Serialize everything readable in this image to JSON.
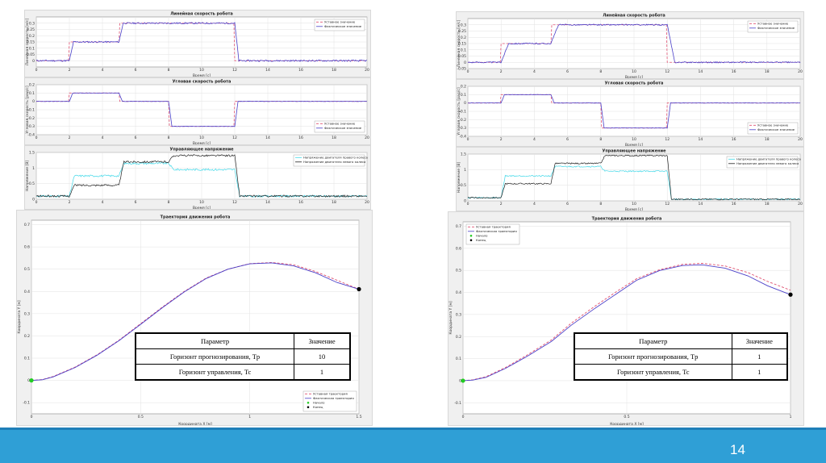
{
  "slide": {
    "page_number": "14",
    "footer_color": "#2f9fd6"
  },
  "colors": {
    "setpoint": "#e05070",
    "actual": "#4a3fc8",
    "right_motor": "#40d8e8",
    "left_motor": "#202020",
    "start": "#22cc22",
    "end": "#000000"
  },
  "table_header": [
    "Параметр",
    "Значение"
  ],
  "param_labels": [
    "Горизонт прогнозирования, Tp",
    "Горизонт управления, Tc"
  ],
  "chart_data": [
    {
      "id": "left-linear-velocity",
      "type": "line",
      "title": "Линейная скорость робота",
      "xlabel": "Время [с]",
      "ylabel": "Линейная скорость [м/с]",
      "xlim": [
        0,
        20
      ],
      "ylim": [
        -0.05,
        0.35
      ],
      "xticks": [
        0,
        2,
        4,
        6,
        8,
        10,
        12,
        14,
        16,
        18,
        20
      ],
      "yticks": [
        0,
        0.05,
        0.1,
        0.15,
        0.2,
        0.25,
        0.3
      ],
      "legend": [
        "Уставное значение",
        "Фактическое значение"
      ],
      "legend_position": "top-right",
      "grid": true,
      "setpoint": {
        "times": [
          0,
          2,
          5,
          12,
          20
        ],
        "values": [
          0,
          0.15,
          0.3,
          0,
          0
        ]
      },
      "lag": 0.25,
      "noise": 0.006
    },
    {
      "id": "left-angular-velocity",
      "type": "line",
      "title": "Угловая скорость робота",
      "xlabel": "Время [с]",
      "ylabel": "Угловая скорость [рад/с]",
      "xlim": [
        0,
        20
      ],
      "ylim": [
        -0.4,
        0.2
      ],
      "xticks": [
        0,
        2,
        4,
        6,
        8,
        10,
        12,
        14,
        16,
        18,
        20
      ],
      "yticks": [
        -0.4,
        -0.3,
        -0.2,
        -0.1,
        0,
        0.1,
        0.2
      ],
      "legend": [
        "Уставное значение",
        "Фактическое значение"
      ],
      "legend_position": "bottom-right",
      "grid": true,
      "setpoint": {
        "times": [
          0,
          2,
          5,
          8,
          12,
          20
        ],
        "values": [
          0,
          0.1,
          0,
          -0.3,
          0,
          0
        ]
      },
      "lag": 0.2,
      "noise": 0.002
    },
    {
      "id": "left-control-voltage",
      "type": "line",
      "title": "Управляющее напряжение",
      "xlabel": "Время [с]",
      "ylabel": "Напряжение [В]",
      "xlim": [
        0,
        20
      ],
      "ylim": [
        0,
        1.5
      ],
      "xticks": [
        0,
        2,
        4,
        6,
        8,
        10,
        12,
        14,
        16,
        18,
        20
      ],
      "yticks": [
        0,
        0.5,
        1,
        1.5
      ],
      "legend": [
        "Напряжение двигателя правого колеса",
        "Напряжение двигателя левого колеса"
      ],
      "legend_position": "top-right",
      "grid": true,
      "series": [
        {
          "name": "Напряжение двигателя правого колеса",
          "times": [
            0,
            2,
            5,
            8,
            12,
            20
          ],
          "values": [
            0.1,
            0.75,
            1.15,
            0.95,
            0.1,
            0.1
          ]
        },
        {
          "name": "Напряжение двигателя левого колеса",
          "times": [
            0,
            2,
            5,
            8,
            12,
            20
          ],
          "values": [
            0.1,
            0.45,
            1.2,
            1.4,
            0.1,
            0.1
          ]
        }
      ],
      "lag": 0.3,
      "noise": 0.03
    },
    {
      "id": "left-trajectory",
      "type": "line",
      "title": "Траектория движения робота",
      "xlabel": "Координата X [м]",
      "ylabel": "Координата Y [м]",
      "xlim": [
        0,
        1.5
      ],
      "ylim": [
        -0.15,
        0.72
      ],
      "xticks": [
        0,
        0.5,
        1,
        1.5
      ],
      "yticks": [
        -0.1,
        0,
        0.1,
        0.2,
        0.3,
        0.4,
        0.5,
        0.6,
        0.7
      ],
      "legend": [
        "Уставная траектория",
        "Фактическая траектория",
        "Начало",
        "Конец"
      ],
      "legend_position": "bottom-right",
      "grid": true,
      "x": [
        0,
        0.05,
        0.1,
        0.2,
        0.3,
        0.4,
        0.5,
        0.6,
        0.7,
        0.8,
        0.9,
        1.0,
        1.1,
        1.2,
        1.3,
        1.4,
        1.5
      ],
      "y_setpoint": [
        0,
        0.004,
        0.018,
        0.06,
        0.115,
        0.18,
        0.255,
        0.33,
        0.4,
        0.46,
        0.5,
        0.525,
        0.53,
        0.52,
        0.49,
        0.45,
        0.41
      ],
      "y_actual": [
        0,
        0.003,
        0.016,
        0.058,
        0.113,
        0.178,
        0.252,
        0.327,
        0.398,
        0.458,
        0.5,
        0.524,
        0.528,
        0.515,
        0.484,
        0.44,
        0.41
      ],
      "start": [
        0,
        0
      ],
      "end": [
        1.5,
        0.41
      ],
      "table": {
        "tp": "10",
        "tc": "1"
      }
    },
    {
      "id": "right-linear-velocity",
      "type": "line",
      "title": "Линейная скорость робота",
      "xlabel": "Время [с]",
      "ylabel": "Линейная скорость [м/с]",
      "xlim": [
        0,
        20
      ],
      "ylim": [
        -0.05,
        0.35
      ],
      "xticks": [
        0,
        2,
        4,
        6,
        8,
        10,
        12,
        14,
        16,
        18,
        20
      ],
      "yticks": [
        -0.05,
        0,
        0.05,
        0.1,
        0.15,
        0.2,
        0.25,
        0.3
      ],
      "legend": [
        "Уставное значение",
        "Фактическое значение"
      ],
      "legend_position": "top-right",
      "grid": true,
      "setpoint": {
        "times": [
          0,
          2,
          5,
          12,
          20
        ],
        "values": [
          0,
          0.15,
          0.3,
          0,
          0
        ]
      },
      "lag": 0.45,
      "noise": 0.005
    },
    {
      "id": "right-angular-velocity",
      "type": "line",
      "title": "Угловая скорость робота",
      "xlabel": "Время [с]",
      "ylabel": "Угловая скорость [рад/с]",
      "xlim": [
        0,
        20
      ],
      "ylim": [
        -0.4,
        0.2
      ],
      "xticks": [
        0,
        2,
        4,
        6,
        8,
        10,
        12,
        14,
        16,
        18,
        20
      ],
      "yticks": [
        -0.4,
        -0.3,
        -0.2,
        -0.1,
        0,
        0.1,
        0.2
      ],
      "legend": [
        "Уставное значение",
        "Фактическое значение"
      ],
      "legend_position": "bottom-right",
      "grid": true,
      "setpoint": {
        "times": [
          0,
          2,
          5,
          8,
          12,
          20
        ],
        "values": [
          0,
          0.1,
          0,
          -0.3,
          0,
          0
        ]
      },
      "lag": 0.2,
      "noise": 0.002
    },
    {
      "id": "right-control-voltage",
      "type": "line",
      "title": "Управляющее напряжение",
      "xlabel": "Время [с]",
      "ylabel": "Напряжение [В]",
      "xlim": [
        0,
        20
      ],
      "ylim": [
        0,
        1.5
      ],
      "xticks": [
        0,
        2,
        4,
        6,
        8,
        10,
        12,
        14,
        16,
        18,
        20
      ],
      "yticks": [
        0,
        0.5,
        1,
        1.5
      ],
      "legend": [
        "Напряжение двигателя правого колеса",
        "Напряжение двигателя левого колеса"
      ],
      "legend_position": "top-right",
      "grid": true,
      "series": [
        {
          "name": "Напряжение двигателя правого колеса",
          "times": [
            0,
            2,
            5,
            8,
            12,
            20
          ],
          "values": [
            0.1,
            0.8,
            1.1,
            0.95,
            0.05,
            0.05
          ]
        },
        {
          "name": "Напряжение двигателя левого колеса",
          "times": [
            0,
            2,
            5,
            8,
            12,
            20
          ],
          "values": [
            0.1,
            0.55,
            1.2,
            1.45,
            0.05,
            0.05
          ]
        }
      ],
      "lag": 0.25,
      "noise": 0.02
    },
    {
      "id": "right-trajectory",
      "type": "line",
      "title": "Траектория движения робота",
      "xlabel": "Координата X [м]",
      "ylabel": "Координата Y [м]",
      "xlim": [
        0,
        1.0
      ],
      "ylim": [
        -0.15,
        0.72
      ],
      "xticks": [
        0,
        0.5,
        1
      ],
      "yticks": [
        -0.1,
        0,
        0.1,
        0.2,
        0.3,
        0.4,
        0.5,
        0.6,
        0.7
      ],
      "legend": [
        "Уставная траектория",
        "Фактическая траектория",
        "Начало",
        "Конец"
      ],
      "legend_position": "top-left",
      "grid": true,
      "x": [
        0,
        0.03,
        0.07,
        0.13,
        0.2,
        0.27,
        0.33,
        0.4,
        0.47,
        0.53,
        0.6,
        0.67,
        0.73,
        0.8,
        0.87,
        0.93,
        1.0
      ],
      "y_setpoint": [
        0,
        0.004,
        0.018,
        0.06,
        0.12,
        0.185,
        0.26,
        0.335,
        0.405,
        0.462,
        0.503,
        0.527,
        0.532,
        0.52,
        0.49,
        0.45,
        0.41
      ],
      "y_actual": [
        0,
        0.003,
        0.015,
        0.056,
        0.114,
        0.178,
        0.251,
        0.325,
        0.395,
        0.455,
        0.499,
        0.522,
        0.525,
        0.51,
        0.475,
        0.43,
        0.39
      ],
      "start": [
        0,
        0
      ],
      "end": [
        1.0,
        0.39
      ],
      "table": {
        "tp": "1",
        "tc": "1"
      }
    }
  ]
}
